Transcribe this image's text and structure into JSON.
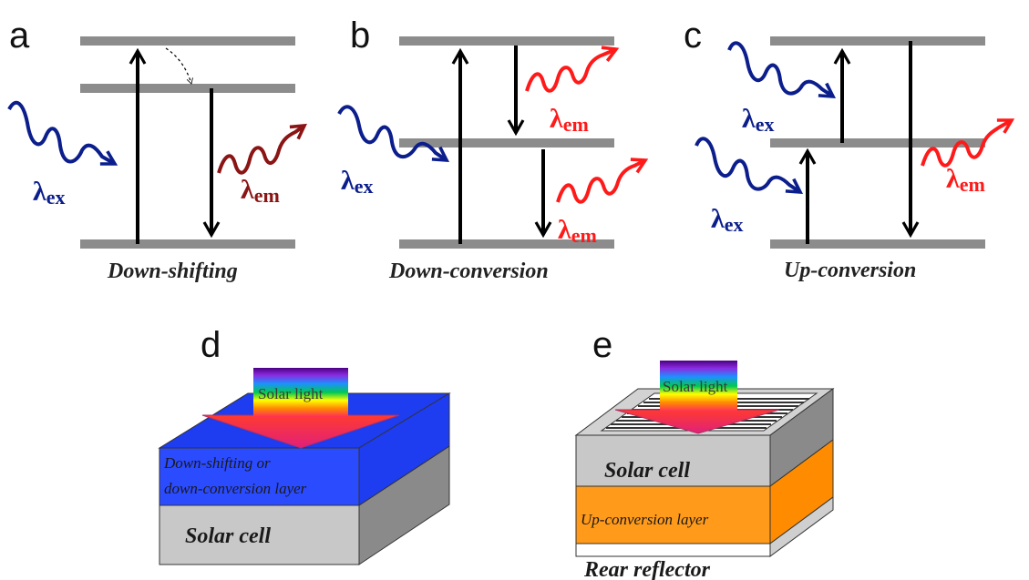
{
  "panels": {
    "a": {
      "letter": "a",
      "caption": "Down-shifting",
      "ex_symbol": "λ",
      "ex_sub": "ex",
      "em_symbol": "λ",
      "em_sub": "em"
    },
    "b": {
      "letter": "b",
      "caption": "Down-conversion",
      "ex_symbol": "λ",
      "ex_sub": "ex",
      "em_symbol": "λ",
      "em_sub": "em"
    },
    "c": {
      "letter": "c",
      "caption": "Up-conversion",
      "ex_symbol": "λ",
      "ex_sub": "ex",
      "em_symbol": "λ",
      "em_sub": "em"
    },
    "d": {
      "letter": "d",
      "solar_light": "Solar light",
      "layer_line1": "Down-shifting or",
      "layer_line2": "down-conversion layer",
      "cell": "Solar cell"
    },
    "e": {
      "letter": "e",
      "solar_light": "Solar light",
      "cell": "Solar cell",
      "layer": "Up-conversion layer",
      "reflector": "Rear reflector"
    }
  },
  "colors": {
    "level": "#8c8c8c",
    "excitation": "#0b1e8c",
    "emission_a": "#8b1414",
    "emission": "#ff1a1a",
    "blue_layer": "#1e3cf0",
    "orange_layer": "#ff8c00",
    "cell_gray": "#c8c8c8"
  }
}
